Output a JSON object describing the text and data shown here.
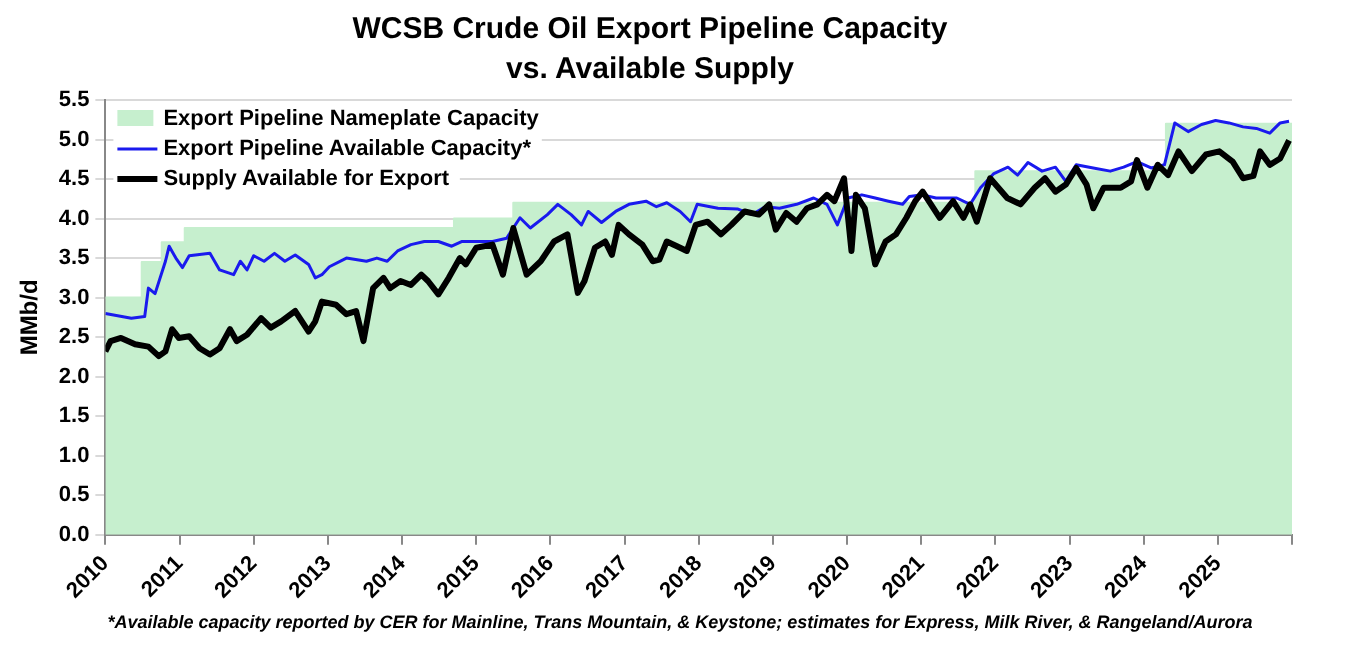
{
  "chart_data": {
    "type": "line",
    "title": "WCSB Crude Oil Export Pipeline Capacity",
    "subtitle": "vs. Available Supply",
    "ylabel": "MMb/d",
    "xlim": [
      2010,
      2026
    ],
    "xticks": [
      2010,
      2011,
      2012,
      2013,
      2014,
      2015,
      2016,
      2017,
      2018,
      2019,
      2020,
      2021,
      2022,
      2023,
      2024,
      2025,
      {
        "value": 2026,
        "label": null
      }
    ],
    "ylim": [
      0,
      5.5
    ],
    "yticks": [
      {
        "value": 0,
        "label": "0.0"
      },
      {
        "value": 0.5,
        "label": "0.5"
      },
      {
        "value": 1,
        "label": "1.0"
      },
      {
        "value": 1.5,
        "label": "1.5"
      },
      {
        "value": 2,
        "label": "2.0"
      },
      {
        "value": 2.5,
        "label": "2.5"
      },
      {
        "value": 3,
        "label": "3.0"
      },
      {
        "value": 3.5,
        "label": "3.5"
      },
      {
        "value": 4,
        "label": "4.0"
      },
      {
        "value": 4.5,
        "label": "4.5"
      },
      {
        "value": 5,
        "label": "5.0"
      },
      {
        "value": 5.5,
        "label": "5.5"
      }
    ],
    "grid": "y",
    "legend": "top left",
    "series": [
      {
        "name": "Export Pipeline Nameplate Capacity",
        "type": "area",
        "color": "#c6efce",
        "x": [
          2010,
          2010.49,
          2010.49,
          2010.76,
          2010.76,
          2011.07,
          2011.07,
          2014.7,
          2014.7,
          2015.5,
          2015.5,
          2021.73,
          2021.73,
          2024.3,
          2024.3,
          2026
        ],
        "values": [
          3.0,
          3.0,
          3.45,
          3.45,
          3.7,
          3.7,
          3.88,
          3.88,
          4.0,
          4.0,
          4.2,
          4.2,
          4.6,
          4.6,
          5.2,
          5.2
        ]
      },
      {
        "name": "Export Pipeline Available Capacity*",
        "type": "line",
        "color": "#1a1aee",
        "x": [
          2010.0,
          2010.35,
          2010.53,
          2010.58,
          2010.67,
          2010.81,
          2010.86,
          2010.95,
          2011.04,
          2011.13,
          2011.41,
          2011.54,
          2011.73,
          2011.82,
          2011.91,
          2012.0,
          2012.14,
          2012.28,
          2012.42,
          2012.56,
          2012.74,
          2012.83,
          2012.92,
          2013.02,
          2013.25,
          2013.52,
          2013.66,
          2013.8,
          2013.94,
          2014.12,
          2014.3,
          2014.49,
          2014.67,
          2014.81,
          2015.22,
          2015.41,
          2015.5,
          2015.59,
          2015.73,
          2015.96,
          2016.1,
          2016.28,
          2016.42,
          2016.51,
          2016.69,
          2016.88,
          2017.06,
          2017.29,
          2017.43,
          2017.57,
          2017.75,
          2017.89,
          2017.98,
          2018.26,
          2018.53,
          2018.72,
          2018.9,
          2019.09,
          2019.32,
          2019.55,
          2019.73,
          2019.87,
          2020.01,
          2020.2,
          2020.38,
          2020.56,
          2020.75,
          2020.84,
          2021.02,
          2021.2,
          2021.48,
          2021.66,
          2021.8,
          2021.98,
          2022.17,
          2022.3,
          2022.44,
          2022.63,
          2022.81,
          2022.95,
          2023.09,
          2023.32,
          2023.55,
          2023.73,
          2023.91,
          2024.1,
          2024.28,
          2024.42,
          2024.6,
          2024.78,
          2024.97,
          2025.15,
          2025.34,
          2025.52,
          2025.7,
          2025.84,
          2025.96
        ],
        "values": [
          2.8,
          2.74,
          2.76,
          3.12,
          3.05,
          3.46,
          3.65,
          3.5,
          3.38,
          3.53,
          3.56,
          3.35,
          3.29,
          3.46,
          3.35,
          3.53,
          3.46,
          3.56,
          3.46,
          3.54,
          3.42,
          3.25,
          3.29,
          3.39,
          3.5,
          3.46,
          3.5,
          3.46,
          3.59,
          3.67,
          3.71,
          3.71,
          3.65,
          3.71,
          3.71,
          3.75,
          3.88,
          4.01,
          3.88,
          4.05,
          4.18,
          4.05,
          3.92,
          4.09,
          3.95,
          4.09,
          4.18,
          4.22,
          4.15,
          4.2,
          4.09,
          3.96,
          4.18,
          4.13,
          4.12,
          4.05,
          4.15,
          4.13,
          4.18,
          4.26,
          4.18,
          3.92,
          4.26,
          4.3,
          4.26,
          4.22,
          4.18,
          4.28,
          4.3,
          4.26,
          4.26,
          4.18,
          4.39,
          4.57,
          4.65,
          4.55,
          4.71,
          4.6,
          4.65,
          4.47,
          4.68,
          4.64,
          4.6,
          4.65,
          4.72,
          4.64,
          4.68,
          5.21,
          5.1,
          5.19,
          5.24,
          5.21,
          5.16,
          5.14,
          5.08,
          5.21,
          5.23
        ]
      },
      {
        "name": "Supply Available for Export",
        "type": "line",
        "color": "#000000",
        "x": [
          2010.0,
          2010.07,
          2010.21,
          2010.4,
          2010.58,
          2010.72,
          2010.81,
          2010.9,
          2010.99,
          2011.13,
          2011.27,
          2011.41,
          2011.54,
          2011.68,
          2011.77,
          2011.91,
          2012.1,
          2012.23,
          2012.37,
          2012.56,
          2012.65,
          2012.74,
          2012.83,
          2012.92,
          2013.11,
          2013.25,
          2013.38,
          2013.48,
          2013.61,
          2013.75,
          2013.84,
          2013.98,
          2014.12,
          2014.26,
          2014.35,
          2014.49,
          2014.63,
          2014.78,
          2014.86,
          2015.0,
          2015.22,
          2015.36,
          2015.5,
          2015.68,
          2015.87,
          2016.05,
          2016.23,
          2016.37,
          2016.46,
          2016.6,
          2016.74,
          2016.83,
          2016.92,
          2017.06,
          2017.24,
          2017.38,
          2017.47,
          2017.57,
          2017.75,
          2017.84,
          2017.96,
          2018.12,
          2018.3,
          2018.44,
          2018.62,
          2018.81,
          2018.95,
          2019.04,
          2019.18,
          2019.32,
          2019.46,
          2019.6,
          2019.73,
          2019.83,
          2019.96,
          2020.06,
          2020.12,
          2020.24,
          2020.38,
          2020.52,
          2020.66,
          2020.8,
          2020.92,
          2021.02,
          2021.25,
          2021.43,
          2021.57,
          2021.66,
          2021.75,
          2021.93,
          2022.16,
          2022.34,
          2022.53,
          2022.67,
          2022.81,
          2022.95,
          2023.09,
          2023.23,
          2023.32,
          2023.46,
          2023.69,
          2023.83,
          2023.91,
          2024.05,
          2024.19,
          2024.33,
          2024.47,
          2024.65,
          2024.84,
          2025.02,
          2025.2,
          2025.34,
          2025.48,
          2025.57,
          2025.7,
          2025.84,
          2025.96
        ],
        "values": [
          2.32,
          2.45,
          2.49,
          2.41,
          2.38,
          2.26,
          2.32,
          2.6,
          2.49,
          2.51,
          2.36,
          2.28,
          2.36,
          2.6,
          2.45,
          2.53,
          2.74,
          2.62,
          2.7,
          2.83,
          2.7,
          2.57,
          2.7,
          2.95,
          2.91,
          2.79,
          2.83,
          2.45,
          3.12,
          3.25,
          3.12,
          3.21,
          3.16,
          3.29,
          3.21,
          3.04,
          3.25,
          3.5,
          3.42,
          3.63,
          3.67,
          3.29,
          3.88,
          3.29,
          3.46,
          3.71,
          3.8,
          3.06,
          3.21,
          3.63,
          3.71,
          3.54,
          3.92,
          3.8,
          3.67,
          3.46,
          3.48,
          3.71,
          3.63,
          3.59,
          3.92,
          3.96,
          3.8,
          3.92,
          4.09,
          4.05,
          4.18,
          3.86,
          4.07,
          3.96,
          4.13,
          4.18,
          4.3,
          4.22,
          4.51,
          3.59,
          4.3,
          4.13,
          3.42,
          3.71,
          3.8,
          4.01,
          4.22,
          4.34,
          4.01,
          4.22,
          4.01,
          4.18,
          3.96,
          4.51,
          4.26,
          4.18,
          4.39,
          4.51,
          4.34,
          4.43,
          4.64,
          4.43,
          4.13,
          4.39,
          4.39,
          4.47,
          4.74,
          4.39,
          4.68,
          4.55,
          4.85,
          4.6,
          4.81,
          4.85,
          4.72,
          4.51,
          4.54,
          4.85,
          4.68,
          4.76,
          4.99
        ]
      }
    ],
    "annotations": [
      "*Available capacity reported by CER for Mainline, Trans Mountain, & Keystone; estimates for Express, Milk River, & Rangeland/Aurora"
    ]
  }
}
